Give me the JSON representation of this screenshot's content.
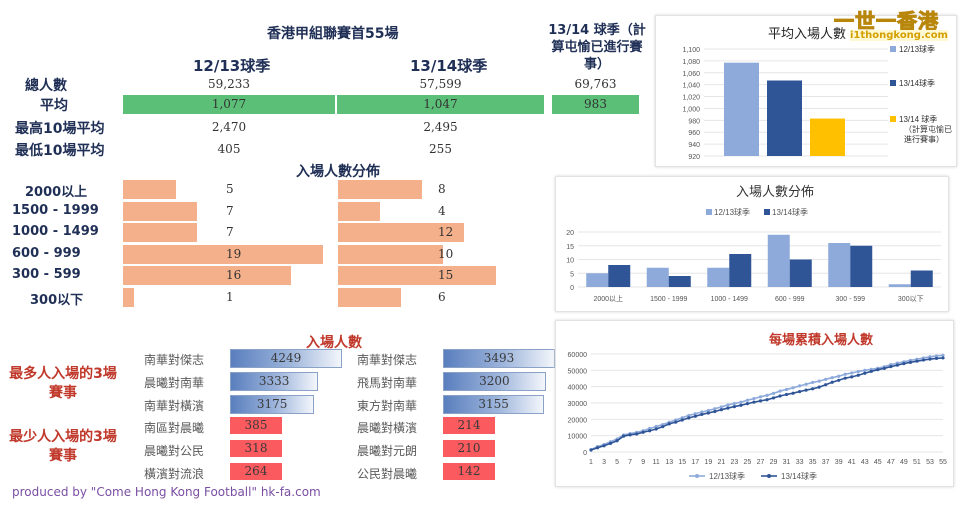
{
  "summary": {
    "title": "香港甲組聯賽首55場",
    "col1": "12/13球季",
    "col2": "13/14球季",
    "col3": "13/14 球季（計算屯愉已進行賽事）",
    "rows": [
      {
        "label": "總人數",
        "v1": "59,233",
        "v2": "57,599",
        "v3": "69,763"
      },
      {
        "label": "平均",
        "v1": "1,077",
        "v2": "1,047",
        "v3": "983"
      },
      {
        "label": "最高10場平均",
        "v1": "2,470",
        "v2": "2,495",
        "v3": ""
      },
      {
        "label": "最低10場平均",
        "v1": "405",
        "v2": "255",
        "v3": ""
      }
    ]
  },
  "distribution": {
    "title": "入場人數分佈",
    "max": 20,
    "rows": [
      {
        "label": "2000以上",
        "a": 5,
        "b": 8
      },
      {
        "label": "1500 - 1999",
        "a": 7,
        "b": 4
      },
      {
        "label": "1000 - 1499",
        "a": 7,
        "b": 12
      },
      {
        "label": "600 - 999",
        "a": 19,
        "b": 10
      },
      {
        "label": "300 - 599",
        "a": 16,
        "b": 15
      },
      {
        "label": "300以下",
        "a": 1,
        "b": 6
      }
    ]
  },
  "matches": {
    "title": "入場人數",
    "most_label": "最多人入場的3場賽事",
    "least_label": "最少人入場的3場賽事",
    "max": 5000,
    "left": [
      {
        "name": "南華對傑志",
        "value": 4249
      },
      {
        "name": "晨曦對南華",
        "value": 3333
      },
      {
        "name": "南華對橫濱",
        "value": 3175
      },
      {
        "name": "南區對晨曦",
        "value": 385
      },
      {
        "name": "晨曦對公民",
        "value": 318
      },
      {
        "name": "橫濱對流浪",
        "value": 264
      }
    ],
    "right": [
      {
        "name": "南華對傑志",
        "value": 3493
      },
      {
        "name": "飛馬對南華",
        "value": 3200
      },
      {
        "name": "東方對南華",
        "value": 3155
      },
      {
        "name": "晨曦對橫濱",
        "value": 214
      },
      {
        "name": "晨曦對元朗",
        "value": 210
      },
      {
        "name": "公民對晨曦",
        "value": 142
      }
    ]
  },
  "credit": "produced by \"Come Hong Kong Football\" hk-fa.com",
  "watermark": {
    "text1": "一世一香港",
    "text2": "i1thongkong.com"
  },
  "colors": {
    "light_blue": "#8eaadb",
    "dark_blue": "#2f5597",
    "gold": "#ffc000",
    "green": "#5bbf77",
    "orange": "#f4b08a",
    "red": "#fb5a5f",
    "navy_text": "#1f2f55"
  },
  "chart_data": [
    {
      "type": "bar",
      "title": "平均入場人數",
      "series": [
        {
          "name": "12/13球季",
          "values": [
            1077
          ],
          "color": "#8eaadb"
        },
        {
          "name": "13/14球季",
          "values": [
            1047
          ],
          "color": "#2f5597"
        },
        {
          "name": "13/14 球季（計算屯愉已進行賽事）",
          "values": [
            983
          ],
          "color": "#ffc000"
        }
      ],
      "ylim": [
        920,
        1100
      ],
      "yticks": [
        "920",
        "940",
        "960",
        "980",
        "1,000",
        "1,020",
        "1,040",
        "1,060",
        "1,080",
        "1,100"
      ],
      "legend": "right"
    },
    {
      "type": "bar",
      "title": "入場人數分佈",
      "categories": [
        "2000以上",
        "1500 - 1999",
        "1000 - 1499",
        "600 - 999",
        "300 - 599",
        "300以下"
      ],
      "series": [
        {
          "name": "12/13球季",
          "values": [
            5,
            7,
            7,
            19,
            16,
            1
          ],
          "color": "#8eaadb"
        },
        {
          "name": "13/14球季",
          "values": [
            8,
            4,
            12,
            10,
            15,
            6
          ],
          "color": "#2f5597"
        }
      ],
      "ylim": [
        0,
        20
      ],
      "yticks": [
        "0",
        "5",
        "10",
        "15",
        "20"
      ],
      "legend": "top"
    },
    {
      "type": "line",
      "title": "每場累積入場人數",
      "x": [
        1,
        2,
        3,
        4,
        5,
        6,
        7,
        8,
        9,
        10,
        11,
        12,
        13,
        14,
        15,
        16,
        17,
        18,
        19,
        20,
        21,
        22,
        23,
        24,
        25,
        26,
        27,
        28,
        29,
        30,
        31,
        32,
        33,
        34,
        35,
        36,
        37,
        38,
        39,
        40,
        41,
        42,
        43,
        44,
        45,
        46,
        47,
        48,
        49,
        50,
        51,
        52,
        53,
        54,
        55
      ],
      "xticks": [
        "1",
        "3",
        "5",
        "7",
        "9",
        "11",
        "13",
        "15",
        "17",
        "19",
        "21",
        "23",
        "25",
        "27",
        "29",
        "31",
        "33",
        "35",
        "37",
        "39",
        "41",
        "43",
        "45",
        "47",
        "49",
        "51",
        "53",
        "55"
      ],
      "series": [
        {
          "name": "12/13球季",
          "color": "#8eaadb",
          "values": [
            1500,
            3300,
            4600,
            6300,
            8000,
            10400,
            11300,
            12000,
            13000,
            14400,
            15600,
            16800,
            18200,
            19600,
            21000,
            22400,
            23400,
            24500,
            25400,
            26500,
            27600,
            28800,
            29700,
            30500,
            31700,
            32700,
            33800,
            34700,
            35900,
            37300,
            38300,
            39300,
            40500,
            41500,
            42600,
            43400,
            44500,
            45500,
            46400,
            47600,
            48400,
            49300,
            50000,
            50600,
            51300,
            52200,
            53500,
            54400,
            55200,
            56100,
            56800,
            57600,
            58300,
            58800,
            59233
          ]
        },
        {
          "name": "13/14球季",
          "color": "#2f5597",
          "values": [
            1200,
            2600,
            3800,
            5300,
            6900,
            9700,
            10500,
            11000,
            12100,
            13000,
            14100,
            15500,
            17200,
            18300,
            19600,
            20900,
            21900,
            23000,
            23900,
            24800,
            25900,
            26900,
            27800,
            28600,
            29600,
            30500,
            31300,
            32000,
            33100,
            34300,
            35200,
            36000,
            37000,
            37900,
            38700,
            39700,
            41200,
            42700,
            43900,
            45200,
            46000,
            47000,
            48200,
            49400,
            50400,
            51200,
            52300,
            53200,
            54100,
            54900,
            55600,
            56300,
            56900,
            57300,
            57599
          ]
        }
      ],
      "ylim": [
        0,
        60000
      ],
      "yticks": [
        "0",
        "10000",
        "20000",
        "30000",
        "40000",
        "50000",
        "60000"
      ],
      "legend": "bottom"
    }
  ]
}
